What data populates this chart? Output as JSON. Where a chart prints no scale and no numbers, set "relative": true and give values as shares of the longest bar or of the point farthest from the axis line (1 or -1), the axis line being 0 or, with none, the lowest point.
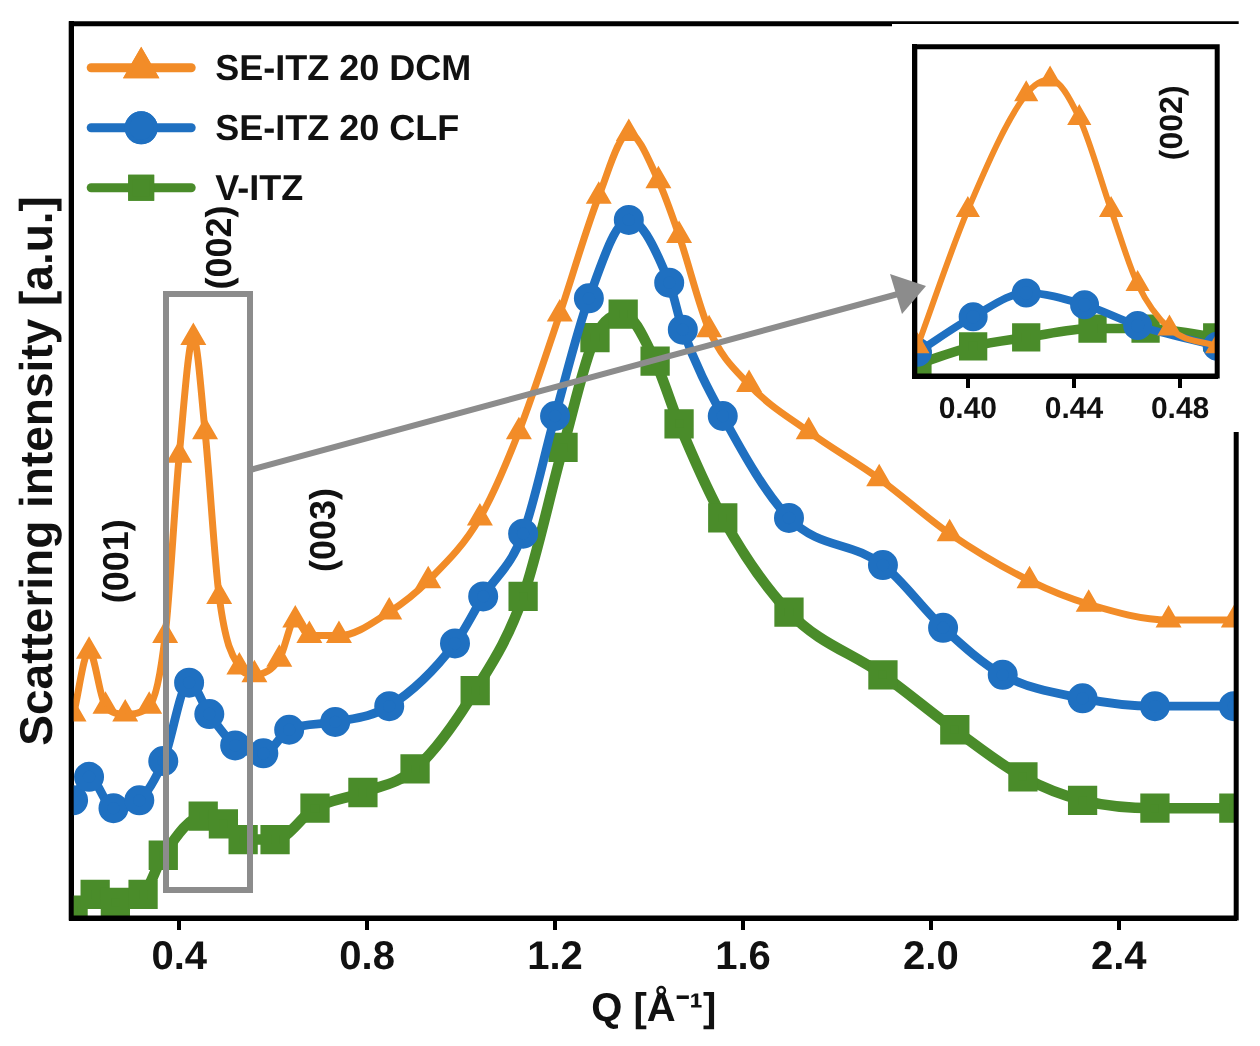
{
  "chart_data": [
    {
      "type": "line",
      "xlabel": "Q [Å⁻¹]",
      "ylabel": "Scattering intensity [a.u.]",
      "relative": true,
      "xlim": [
        0.17,
        2.65
      ],
      "xticks": [
        0.4,
        0.8,
        1.2,
        1.6,
        {
          "value": 2,
          "label": "2.0"
        },
        2.4
      ],
      "legend": "top left",
      "series": [
        {
          "name": "SE-ITZ 20 DCM",
          "color": "#f28c28",
          "marker": "triangle",
          "x": [
            0.175,
            0.208,
            0.243,
            0.285,
            0.336,
            0.37,
            0.4,
            0.43,
            0.455,
            0.485,
            0.528,
            0.56,
            0.613,
            0.647,
            0.677,
            0.74,
            0.847,
            0.93,
            1.04,
            1.123,
            1.21,
            1.293,
            1.357,
            1.42,
            1.464,
            1.528,
            1.613,
            1.74,
            1.89,
            2.04,
            2.21,
            2.336,
            2.506,
            2.645
          ],
          "values": [
            0.26,
            0.34,
            0.27,
            0.26,
            0.27,
            0.36,
            0.59,
            0.74,
            0.62,
            0.41,
            0.32,
            0.31,
            0.33,
            0.38,
            0.36,
            0.36,
            0.39,
            0.43,
            0.51,
            0.62,
            0.77,
            0.92,
            1,
            0.94,
            0.87,
            0.75,
            0.68,
            0.62,
            0.56,
            0.49,
            0.43,
            0.4,
            0.38,
            0.38
          ]
        },
        {
          "name": "SE-ITZ 20 CLF",
          "color": "#1f70c1",
          "marker": "circle",
          "x": [
            0.174,
            0.208,
            0.26,
            0.315,
            0.366,
            0.421,
            0.464,
            0.519,
            0.579,
            0.634,
            0.732,
            0.847,
            0.987,
            1.047,
            1.132,
            1.2,
            1.272,
            1.357,
            1.443,
            1.472,
            1.557,
            1.698,
            1.898,
            2.026,
            2.153,
            2.323,
            2.477,
            2.645
          ],
          "values": [
            0.15,
            0.18,
            0.14,
            0.15,
            0.2,
            0.3,
            0.26,
            0.22,
            0.21,
            0.24,
            0.25,
            0.27,
            0.35,
            0.41,
            0.49,
            0.64,
            0.79,
            0.89,
            0.81,
            0.75,
            0.64,
            0.51,
            0.45,
            0.37,
            0.31,
            0.28,
            0.27,
            0.27
          ]
        },
        {
          "name": "V-ITZ",
          "color": "#4a8c2a",
          "marker": "square",
          "x": [
            0.174,
            0.221,
            0.264,
            0.323,
            0.366,
            0.451,
            0.494,
            0.536,
            0.604,
            0.689,
            0.791,
            0.902,
            1.03,
            1.132,
            1.217,
            1.285,
            1.345,
            1.413,
            1.464,
            1.557,
            1.698,
            1.898,
            2.051,
            2.196,
            2.323,
            2.477,
            2.645
          ],
          "values": [
            0.01,
            0.03,
            0.02,
            0.03,
            0.08,
            0.13,
            0.12,
            0.1,
            0.1,
            0.14,
            0.16,
            0.19,
            0.29,
            0.41,
            0.6,
            0.74,
            0.77,
            0.71,
            0.63,
            0.51,
            0.39,
            0.31,
            0.24,
            0.18,
            0.15,
            0.14,
            0.14
          ]
        }
      ],
      "annotations": [
        {
          "text": "(001)",
          "x": 0.21,
          "y": 0.34
        },
        {
          "text": "(002)",
          "x": 0.43,
          "y": 0.74
        },
        {
          "text": "(003)",
          "x": 0.65,
          "y": 0.38
        }
      ]
    },
    {
      "type": "line",
      "relative": true,
      "xlim": [
        0.38,
        0.494
      ],
      "xticks": [
        {
          "value": 0.4,
          "label": "0.40"
        },
        {
          "value": 0.44,
          "label": "0.44"
        },
        {
          "value": 0.48,
          "label": "0.48"
        }
      ],
      "series": [
        {
          "color": "#f28c28",
          "marker": "triangle",
          "x": [
            0.381,
            0.4,
            0.422,
            0.431,
            0.442,
            0.454,
            0.464,
            0.476,
            0.494
          ],
          "values": [
            0.1,
            0.56,
            0.95,
            1,
            0.87,
            0.56,
            0.31,
            0.16,
            0.1
          ]
        },
        {
          "color": "#1f70c1",
          "marker": "circle",
          "x": [
            0.381,
            0.402,
            0.422,
            0.444,
            0.464,
            0.494
          ],
          "values": [
            0.08,
            0.2,
            0.28,
            0.24,
            0.17,
            0.1
          ]
        },
        {
          "color": "#4a8c2a",
          "marker": "square",
          "x": [
            0.381,
            0.402,
            0.422,
            0.447,
            0.467,
            0.494
          ],
          "values": [
            0.04,
            0.1,
            0.13,
            0.16,
            0.16,
            0.13
          ]
        }
      ],
      "annotations": [
        "(002)"
      ]
    }
  ]
}
